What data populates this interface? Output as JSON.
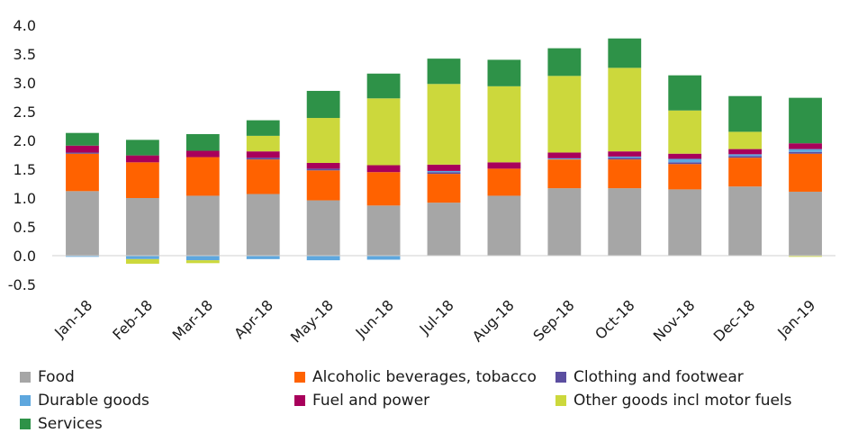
{
  "chart_data": {
    "type": "bar",
    "stacked": true,
    "categories": [
      "Jan-18",
      "Feb-18",
      "Mar-18",
      "Apr-18",
      "May-18",
      "Jun-18",
      "Jul-18",
      "Aug-18",
      "Sep-18",
      "Oct-18",
      "Nov-18",
      "Dec-18",
      "Jan-19"
    ],
    "ylim": [
      -0.5,
      4.0
    ],
    "yticks": [
      "4.0",
      "3.5",
      "3.0",
      "2.5",
      "2.0",
      "1.5",
      "1.0",
      "0.5",
      "0.0",
      "-0.5"
    ],
    "ytick_values": [
      4.0,
      3.5,
      3.0,
      2.5,
      2.0,
      1.5,
      1.0,
      0.5,
      0.0,
      -0.5
    ],
    "grid": false,
    "legend_placement": "bottom",
    "series": [
      {
        "name": "Food",
        "color": "#a6a6a6",
        "values": [
          1.12,
          1.0,
          1.04,
          1.07,
          0.96,
          0.87,
          0.92,
          1.04,
          1.17,
          1.17,
          1.15,
          1.2,
          1.11
        ]
      },
      {
        "name": "Alcoholic beverages, tobacco",
        "color": "#ff6200",
        "values": [
          0.65,
          0.62,
          0.67,
          0.6,
          0.52,
          0.58,
          0.5,
          0.47,
          0.5,
          0.5,
          0.44,
          0.5,
          0.66
        ]
      },
      {
        "name": "Clothing and footwear",
        "color": "#5b4ea0",
        "values": [
          0.02,
          0.0,
          0.0,
          0.03,
          0.03,
          0.0,
          0.03,
          0.0,
          0.0,
          0.03,
          0.03,
          0.03,
          0.03
        ]
      },
      {
        "name": "Durable goods",
        "color": "#5ea7de",
        "values": [
          -0.02,
          -0.06,
          -0.08,
          -0.06,
          -0.08,
          -0.07,
          0.02,
          0.0,
          0.02,
          0.02,
          0.06,
          0.03,
          0.05
        ]
      },
      {
        "name": "Fuel and power",
        "color": "#a8005b",
        "values": [
          0.12,
          0.12,
          0.11,
          0.11,
          0.1,
          0.12,
          0.11,
          0.11,
          0.1,
          0.09,
          0.09,
          0.09,
          0.1
        ]
      },
      {
        "name": "Other goods incl motor fuels",
        "color": "#ccd83c",
        "values": [
          0.0,
          -0.08,
          -0.05,
          0.27,
          0.78,
          1.16,
          1.4,
          1.32,
          1.33,
          1.45,
          0.75,
          0.3,
          -0.02
        ]
      },
      {
        "name": "Services",
        "color": "#2e9248",
        "values": [
          0.22,
          0.27,
          0.29,
          0.27,
          0.47,
          0.43,
          0.44,
          0.46,
          0.48,
          0.51,
          0.61,
          0.62,
          0.79
        ]
      }
    ]
  }
}
